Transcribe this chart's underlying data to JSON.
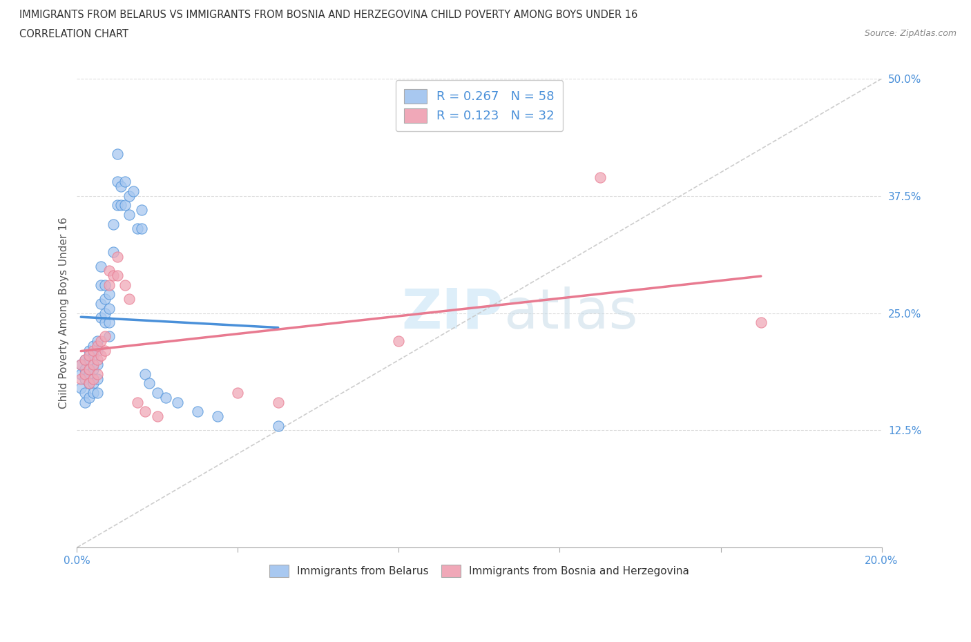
{
  "title_line1": "IMMIGRANTS FROM BELARUS VS IMMIGRANTS FROM BOSNIA AND HERZEGOVINA CHILD POVERTY AMONG BOYS UNDER 16",
  "title_line2": "CORRELATION CHART",
  "source_text": "Source: ZipAtlas.com",
  "ylabel": "Child Poverty Among Boys Under 16",
  "xlim": [
    0.0,
    0.2
  ],
  "ylim": [
    0.0,
    0.5
  ],
  "color_belarus": "#a8c8f0",
  "color_bosnia": "#f0a8b8",
  "line_color_belarus": "#4a90d9",
  "line_color_bosnia": "#e87a90",
  "trend_line_color": "#c8c8c8",
  "R_belarus": 0.267,
  "N_belarus": 58,
  "R_bosnia": 0.123,
  "N_bosnia": 32,
  "watermark_zip": "ZIP",
  "watermark_atlas": "atlas",
  "legend_label_belarus": "Immigrants from Belarus",
  "legend_label_bosnia": "Immigrants from Bosnia and Herzegovina",
  "legend_blue": "#4a90d9",
  "belarus_x": [
    0.001,
    0.001,
    0.001,
    0.002,
    0.002,
    0.002,
    0.002,
    0.002,
    0.003,
    0.003,
    0.003,
    0.003,
    0.003,
    0.004,
    0.004,
    0.004,
    0.004,
    0.004,
    0.005,
    0.005,
    0.005,
    0.005,
    0.005,
    0.006,
    0.006,
    0.006,
    0.006,
    0.007,
    0.007,
    0.007,
    0.007,
    0.008,
    0.008,
    0.008,
    0.008,
    0.009,
    0.009,
    0.01,
    0.01,
    0.01,
    0.011,
    0.011,
    0.012,
    0.012,
    0.013,
    0.013,
    0.014,
    0.015,
    0.016,
    0.016,
    0.017,
    0.018,
    0.02,
    0.022,
    0.025,
    0.03,
    0.035,
    0.05
  ],
  "belarus_y": [
    0.195,
    0.185,
    0.17,
    0.2,
    0.19,
    0.18,
    0.165,
    0.155,
    0.21,
    0.2,
    0.185,
    0.175,
    0.16,
    0.215,
    0.205,
    0.19,
    0.175,
    0.165,
    0.22,
    0.21,
    0.195,
    0.18,
    0.165,
    0.3,
    0.28,
    0.26,
    0.245,
    0.28,
    0.265,
    0.25,
    0.24,
    0.27,
    0.255,
    0.24,
    0.225,
    0.345,
    0.315,
    0.42,
    0.39,
    0.365,
    0.385,
    0.365,
    0.39,
    0.365,
    0.375,
    0.355,
    0.38,
    0.34,
    0.36,
    0.34,
    0.185,
    0.175,
    0.165,
    0.16,
    0.155,
    0.145,
    0.14,
    0.13
  ],
  "bosnia_x": [
    0.001,
    0.001,
    0.002,
    0.002,
    0.003,
    0.003,
    0.003,
    0.004,
    0.004,
    0.004,
    0.005,
    0.005,
    0.005,
    0.006,
    0.006,
    0.007,
    0.007,
    0.008,
    0.008,
    0.009,
    0.01,
    0.01,
    0.012,
    0.013,
    0.015,
    0.017,
    0.02,
    0.04,
    0.05,
    0.08,
    0.13,
    0.17
  ],
  "bosnia_y": [
    0.195,
    0.18,
    0.2,
    0.185,
    0.205,
    0.19,
    0.175,
    0.21,
    0.195,
    0.18,
    0.215,
    0.2,
    0.185,
    0.22,
    0.205,
    0.225,
    0.21,
    0.295,
    0.28,
    0.29,
    0.31,
    0.29,
    0.28,
    0.265,
    0.155,
    0.145,
    0.14,
    0.165,
    0.155,
    0.22,
    0.395,
    0.24
  ]
}
